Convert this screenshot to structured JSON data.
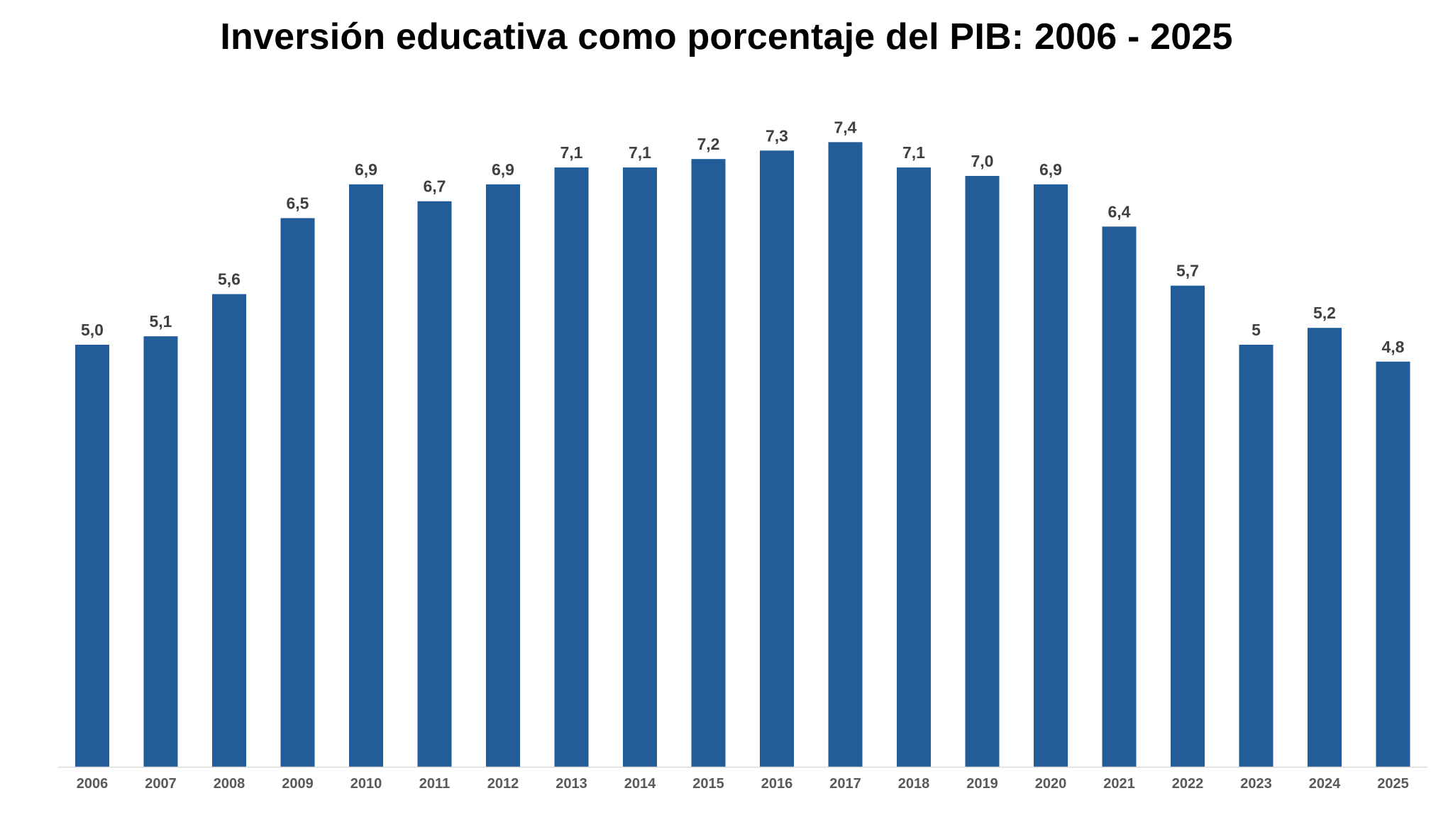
{
  "chart_data": {
    "type": "bar",
    "title": "Inversión educativa como porcentaje del PIB: 2006 - 2025",
    "categories": [
      "2006",
      "2007",
      "2008",
      "2009",
      "2010",
      "2011",
      "2012",
      "2013",
      "2014",
      "2015",
      "2016",
      "2017",
      "2018",
      "2019",
      "2020",
      "2021",
      "2022",
      "2023",
      "2024",
      "2025"
    ],
    "values": [
      5.0,
      5.1,
      5.6,
      6.5,
      6.9,
      6.7,
      6.9,
      7.1,
      7.1,
      7.2,
      7.3,
      7.4,
      7.1,
      7.0,
      6.9,
      6.4,
      5.7,
      5.0,
      5.2,
      4.8
    ],
    "value_labels": [
      "5,0",
      "5,1",
      "5,6",
      "6,5",
      "6,9",
      "6,7",
      "6,9",
      "7,1",
      "7,1",
      "7,2",
      "7,3",
      "7,4",
      "7,1",
      "7,0",
      "6,9",
      "6,4",
      "5,7",
      "5",
      "5,2",
      "4,8"
    ],
    "xlabel": "",
    "ylabel": "",
    "ylim": [
      0,
      8
    ],
    "grid": false,
    "legend": "none",
    "bar_color": "#225c99",
    "axis_color": "#d9d9d9"
  }
}
